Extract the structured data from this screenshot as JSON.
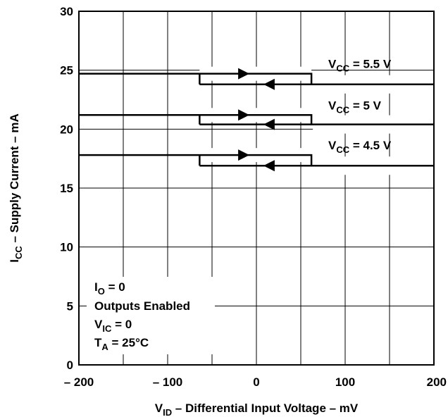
{
  "chart_data": {
    "type": "line",
    "title": "",
    "xlabel": {
      "main": "V",
      "sub": "ID",
      "rest": " – Differential Input Voltage – mV"
    },
    "ylabel": {
      "main": "I",
      "sub": "CC",
      "rest": " – Supply Current – mA"
    },
    "xlim": [
      -200,
      200
    ],
    "ylim": [
      0,
      30
    ],
    "xticks": [
      -200,
      -100,
      0,
      100,
      200
    ],
    "xtick_labels": [
      "– 200",
      "– 100",
      "0",
      "100",
      "200"
    ],
    "yticks": [
      0,
      5,
      10,
      15,
      20,
      25,
      30
    ],
    "ytick_labels": [
      "0",
      "5",
      "10",
      "15",
      "20",
      "25",
      "30"
    ],
    "grid": true,
    "hysteresis": {
      "threshold_low": -64,
      "threshold_high": 62
    },
    "series": [
      {
        "name": {
          "main": "V",
          "sub": "CC",
          "rest": " = 5.5 V"
        },
        "low_current": 24.7,
        "high_current": 23.8
      },
      {
        "name": {
          "main": "V",
          "sub": "CC",
          "rest": " = 5 V"
        },
        "low_current": 21.2,
        "high_current": 20.4
      },
      {
        "name": {
          "main": "V",
          "sub": "CC",
          "rest": " = 4.5 V"
        },
        "low_current": 17.8,
        "high_current": 16.9
      }
    ],
    "conditions": [
      {
        "main": "I",
        "sub": "O",
        "rest": " = 0"
      },
      {
        "main": "Outputs Enabled",
        "sub": "",
        "rest": ""
      },
      {
        "main": "V",
        "sub": "IC",
        "rest": " = 0"
      },
      {
        "main": "T",
        "sub": "A",
        "rest": " = 25°C"
      }
    ]
  }
}
